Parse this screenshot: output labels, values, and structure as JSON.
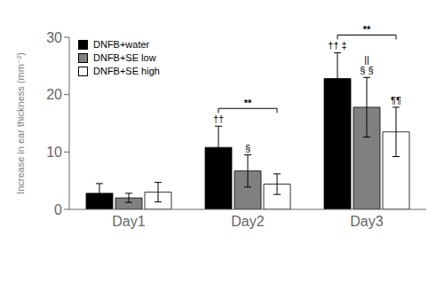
{
  "chart_data": {
    "type": "bar",
    "categories": [
      "Day1",
      "Day2",
      "Day3"
    ],
    "series": [
      {
        "name": "DNFB+water",
        "color": "#000000",
        "values": [
          2.8,
          10.8,
          22.8
        ],
        "errors": [
          1.7,
          3.7,
          4.5
        ]
      },
      {
        "name": "DNFB+SE low",
        "color": "#808080",
        "values": [
          2.0,
          6.7,
          17.8
        ],
        "errors": [
          0.8,
          2.8,
          5.2
        ]
      },
      {
        "name": "DNFB+SE high",
        "color": "#ffffff",
        "values": [
          3.0,
          4.4,
          13.5
        ],
        "errors": [
          1.7,
          1.8,
          4.3
        ]
      }
    ],
    "ylabel": "Increase in ear thickness (mm⁻²)",
    "ylim": [
      0,
      30
    ],
    "yticks": [
      0,
      10,
      20,
      30
    ],
    "grid": false,
    "legend": "upper left",
    "annotations": [
      {
        "category": "Day2",
        "series": "DNFB+water",
        "lines": [
          [
            "††"
          ]
        ]
      },
      {
        "category": "Day2",
        "series": "DNFB+SE low",
        "lines": [
          [
            "§"
          ]
        ]
      },
      {
        "category": "Day3",
        "series": "DNFB+water",
        "lines": [
          [
            "††",
            "‡"
          ]
        ]
      },
      {
        "category": "Day3",
        "series": "DNFB+SE low",
        "lines": [
          [
            "§",
            "§"
          ],
          [
            "||"
          ]
        ]
      },
      {
        "category": "Day3",
        "series": "DNFB+SE high",
        "lines": [
          [
            "¶¶"
          ]
        ]
      }
    ],
    "brackets": [
      {
        "text": "**",
        "category": "Day2",
        "from": "DNFB+water",
        "to": "DNFB+SE high"
      },
      {
        "text": "**",
        "category": "Day3",
        "from": "DNFB+water",
        "to": "DNFB+SE high"
      }
    ]
  }
}
